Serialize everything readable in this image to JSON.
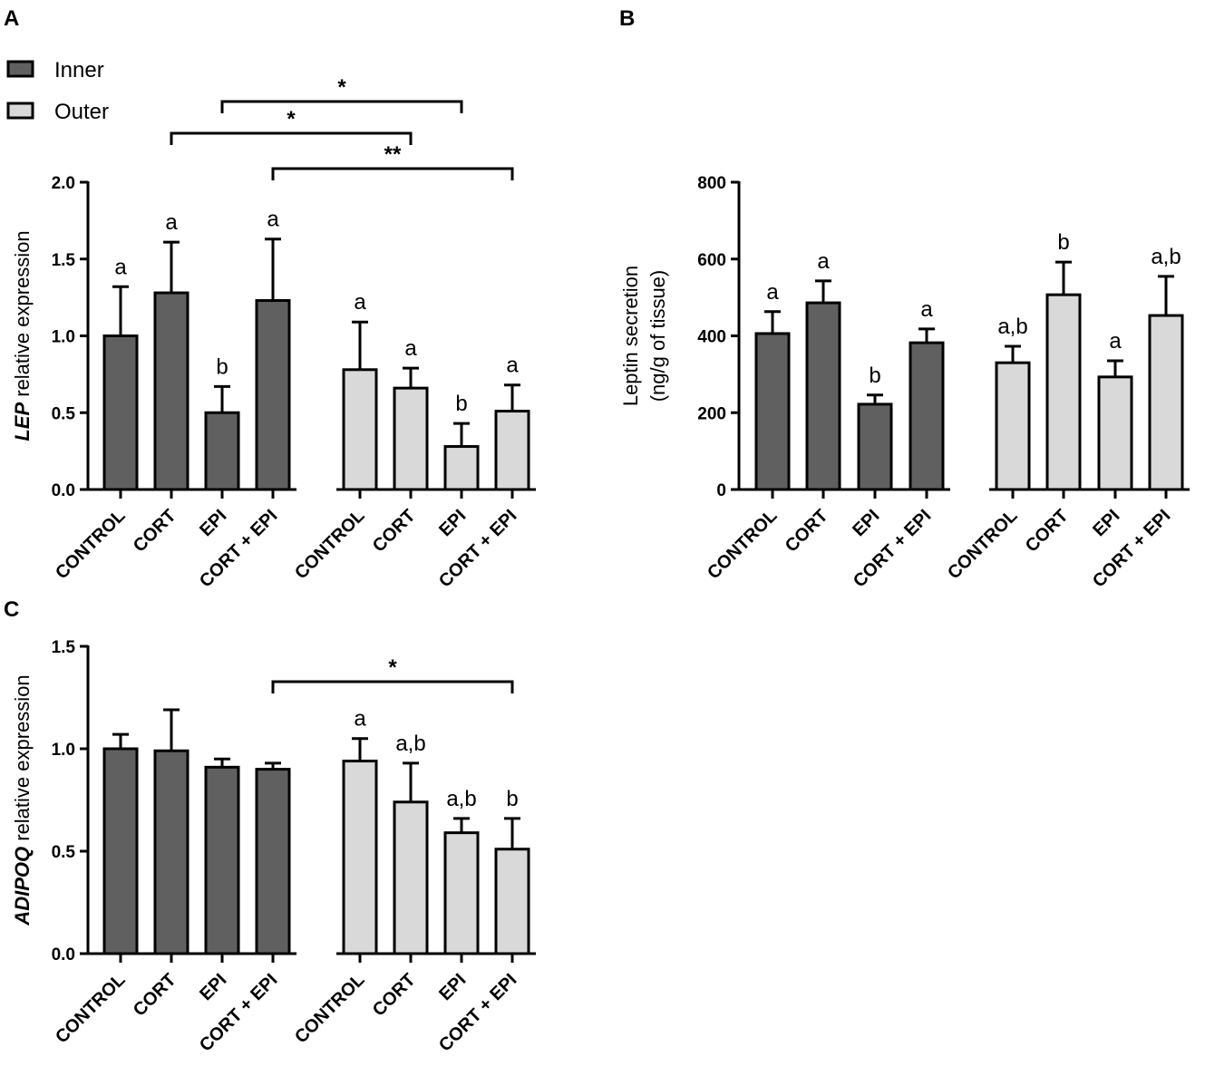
{
  "colors": {
    "inner": "#606060",
    "outer": "#d9d9d9",
    "stroke": "#000000"
  },
  "legend": [
    {
      "name": "Inner",
      "color": "#606060"
    },
    {
      "name": "Outer",
      "color": "#d9d9d9"
    }
  ],
  "chart_data": [
    {
      "panel": "A",
      "type": "bar",
      "ylabel_italic": "LEP",
      "ylabel_rest": " relative expression",
      "ylim": [
        0,
        2.0
      ],
      "yticks": [
        "0.0",
        "0.5",
        "1.0",
        "1.5",
        "2.0"
      ],
      "categories": [
        "CONTROL",
        "CORT",
        "EPI",
        "CORT + EPI",
        "CONTROL",
        "CORT",
        "EPI",
        "CORT + EPI"
      ],
      "groups": [
        "Inner",
        "Inner",
        "Inner",
        "Inner",
        "Outer",
        "Outer",
        "Outer",
        "Outer"
      ],
      "values": [
        1.0,
        1.28,
        0.5,
        1.23,
        0.78,
        0.66,
        0.28,
        0.51
      ],
      "error_upper": [
        1.32,
        1.61,
        0.67,
        1.63,
        1.09,
        0.79,
        0.43,
        0.68
      ],
      "letters": [
        "a",
        "a",
        "b",
        "a",
        "a",
        "a",
        "b",
        "a"
      ],
      "brackets": [
        {
          "from": 2,
          "to": 6,
          "label": "*"
        },
        {
          "from": 1,
          "to": 5,
          "label": "*"
        },
        {
          "from": 3,
          "to": 7,
          "label": "**"
        }
      ]
    },
    {
      "panel": "B",
      "type": "bar",
      "ylabel_line1": "Leptin secretion",
      "ylabel_line2": "(ng/g of tissue)",
      "ylim": [
        0,
        800
      ],
      "yticks": [
        "0",
        "200",
        "400",
        "600",
        "800"
      ],
      "categories": [
        "CONTROL",
        "CORT",
        "EPI",
        "CORT + EPI",
        "CONTROL",
        "CORT",
        "EPI",
        "CORT + EPI"
      ],
      "groups": [
        "Inner",
        "Inner",
        "Inner",
        "Inner",
        "Outer",
        "Outer",
        "Outer",
        "Outer"
      ],
      "values": [
        406,
        486,
        222,
        382,
        330,
        507,
        293,
        453
      ],
      "error_upper": [
        463,
        543,
        246,
        418,
        373,
        592,
        335,
        555
      ],
      "letters": [
        "a",
        "a",
        "b",
        "a",
        "a,b",
        "b",
        "a",
        "a,b"
      ],
      "brackets": []
    },
    {
      "panel": "C",
      "type": "bar",
      "ylabel_italic": "ADIPOQ",
      "ylabel_rest": " relative expression",
      "ylim": [
        0,
        1.5
      ],
      "yticks": [
        "0.0",
        "0.5",
        "1.0",
        "1.5"
      ],
      "categories": [
        "CONTROL",
        "CORT",
        "EPI",
        "CORT + EPI",
        "CONTROL",
        "CORT",
        "EPI",
        "CORT + EPI"
      ],
      "groups": [
        "Inner",
        "Inner",
        "Inner",
        "Inner",
        "Outer",
        "Outer",
        "Outer",
        "Outer"
      ],
      "values": [
        1.0,
        0.99,
        0.91,
        0.9,
        0.94,
        0.74,
        0.59,
        0.51
      ],
      "error_upper": [
        1.07,
        1.19,
        0.95,
        0.93,
        1.05,
        0.93,
        0.66,
        0.66
      ],
      "letters": [
        "",
        "",
        "",
        "",
        "a",
        "a,b",
        "a,b",
        "b"
      ],
      "brackets": [
        {
          "from": 3,
          "to": 7,
          "label": "*"
        }
      ]
    }
  ]
}
